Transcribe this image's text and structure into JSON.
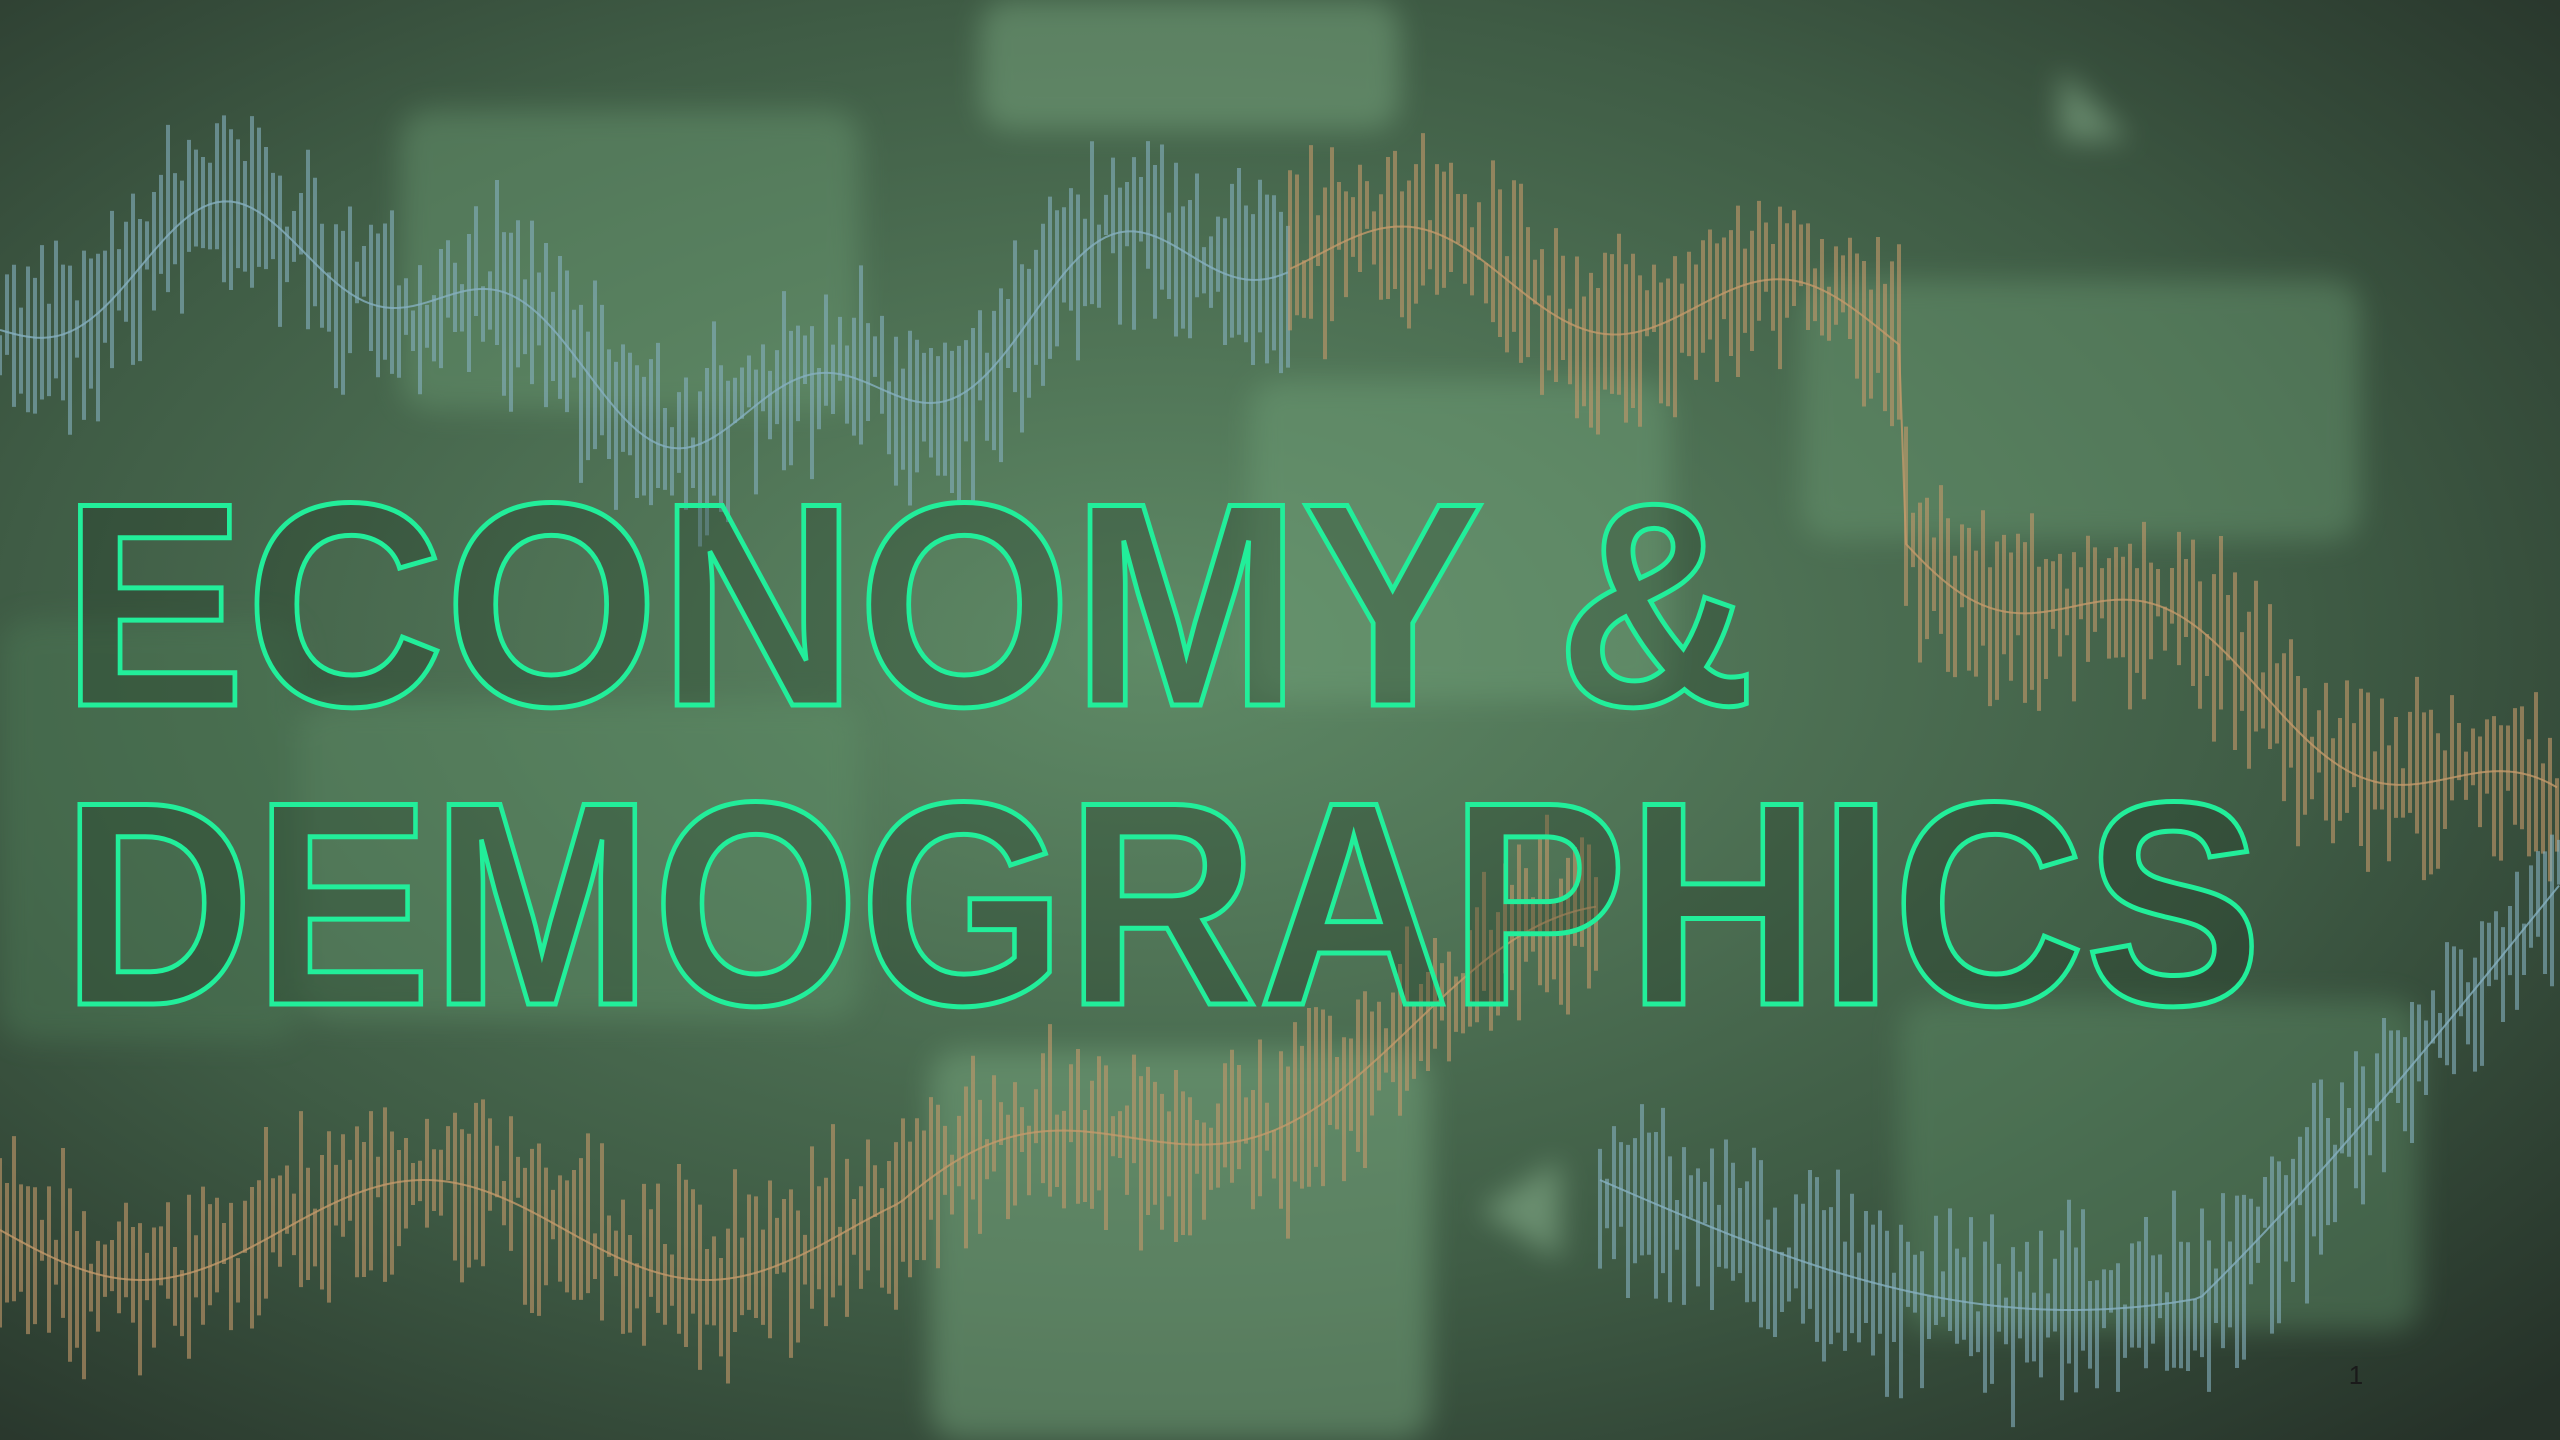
{
  "slide": {
    "title_lines": [
      "ECONOMY &",
      "DEMOGRAPHICS"
    ],
    "page_number": "1"
  }
}
